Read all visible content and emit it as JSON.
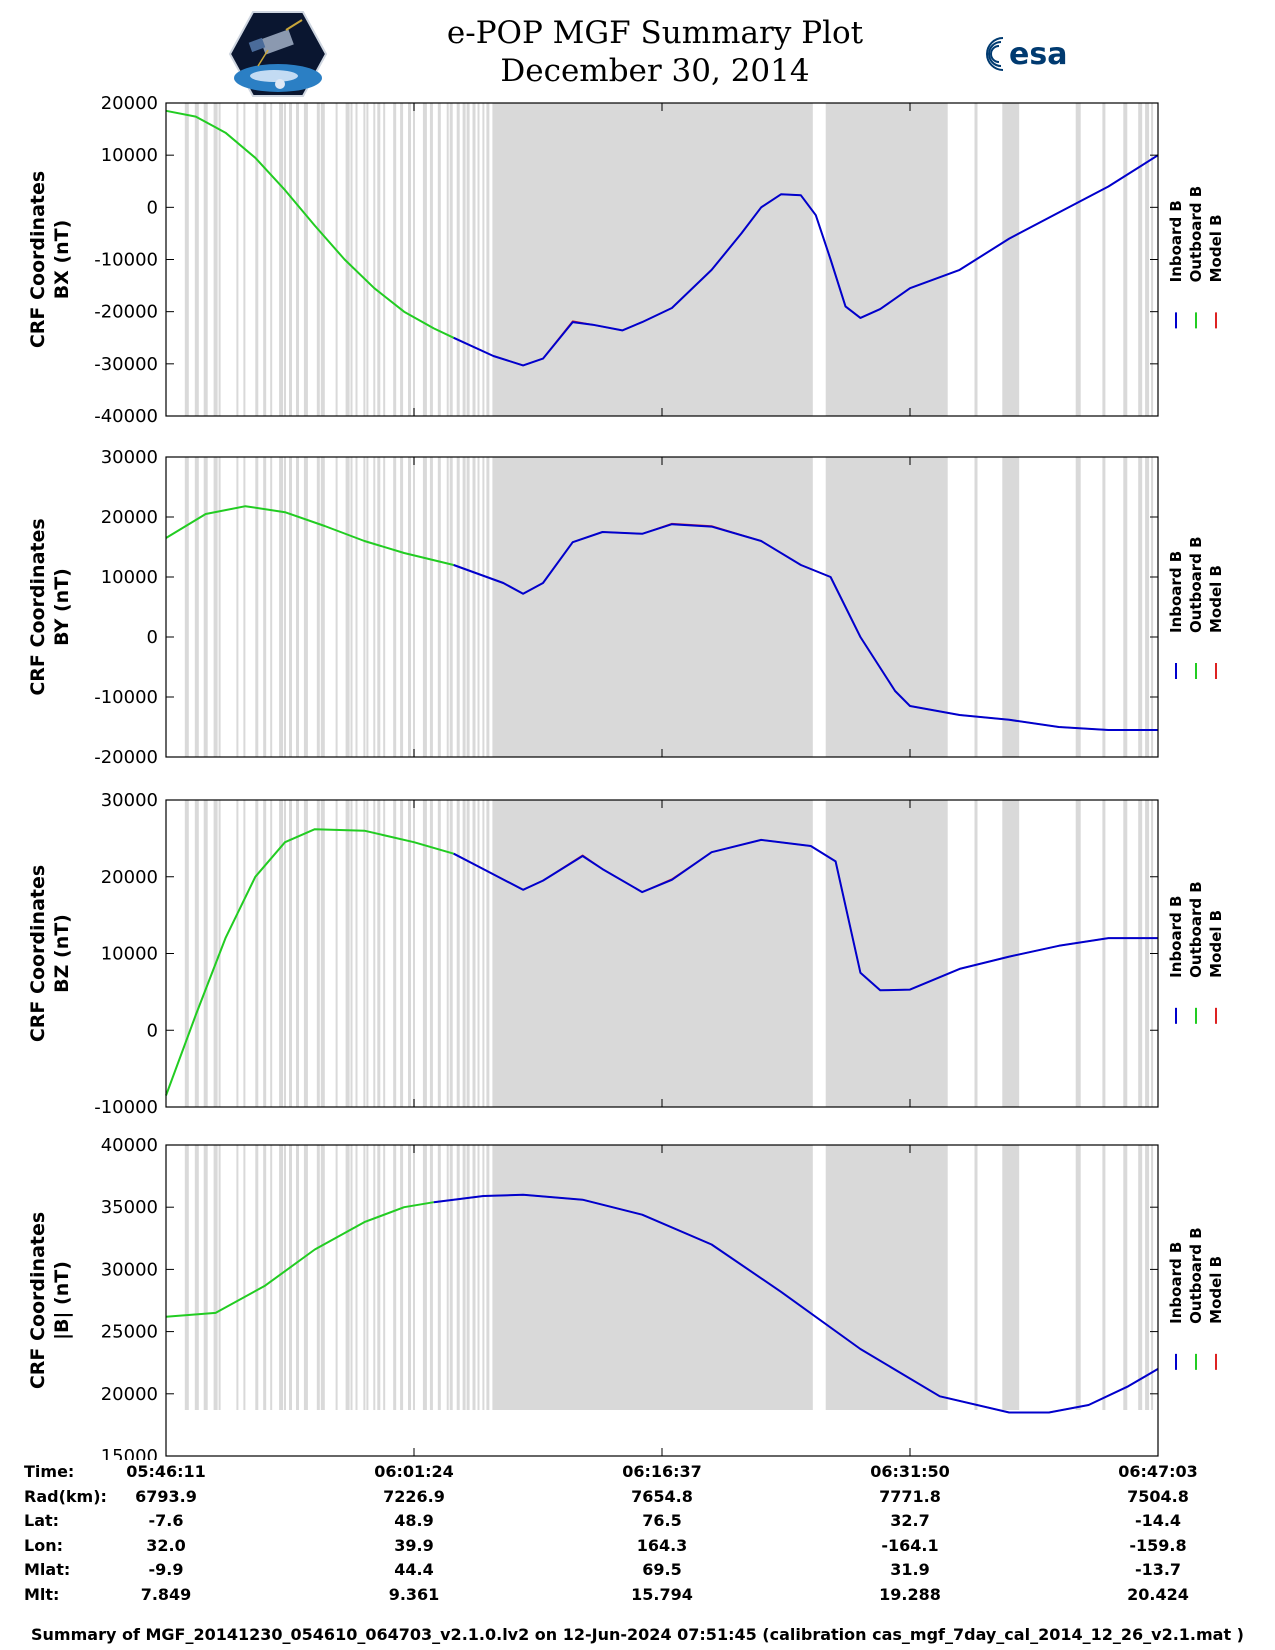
{
  "title": {
    "line1": "e-POP MGF Summary Plot",
    "line2": "December 30, 2014"
  },
  "logos": {
    "left_icon": "cassiope-satellite-logo",
    "right_icon": "esa-logo",
    "right_text": "esa"
  },
  "legend": {
    "labels": [
      "Inboard B",
      "Outboard B",
      "Model B"
    ],
    "colors": [
      "#0000cc",
      "#22cc22",
      "#dd2222"
    ]
  },
  "colors": {
    "gap_shade": "#d9d9d9",
    "inboard": "#0000cc",
    "outboard": "#22cc22",
    "model": "#dd2222"
  },
  "chart_data": [
    {
      "type": "line",
      "ylabel_top": "CRF Coordinates",
      "ylabel_bottom": "BX (nT)",
      "ylim": [
        -40000,
        20000
      ],
      "yticks": [
        20000,
        10000,
        0,
        -10000,
        -20000,
        -30000,
        -40000
      ],
      "series": [
        {
          "name": "Outboard B",
          "x": [
            0,
            0.03,
            0.06,
            0.09,
            0.12,
            0.15,
            0.18,
            0.21,
            0.24,
            0.27,
            0.29
          ],
          "values": [
            18500,
            17400,
            14300,
            9500,
            3300,
            -3500,
            -10000,
            -15500,
            -20000,
            -23200,
            -25000
          ]
        },
        {
          "name": "Inboard B",
          "x": [
            0.29,
            0.33,
            0.36,
            0.38,
            0.41,
            0.43,
            0.46,
            0.48,
            0.51,
            0.55,
            0.58,
            0.6,
            0.62,
            0.64,
            0.655,
            0.67,
            0.685,
            0.7,
            0.72,
            0.75,
            0.8,
            0.85,
            0.9,
            0.95,
            1.0
          ],
          "values": [
            -25000,
            -28500,
            -30300,
            -29000,
            -22000,
            -22500,
            -23600,
            -22000,
            -19300,
            -12000,
            -5000,
            0,
            2500,
            2300,
            -1500,
            -10000,
            -19000,
            -21200,
            -19500,
            -15500,
            -12000,
            -6000,
            -1000,
            4000,
            10000
          ]
        },
        {
          "name": "Model B",
          "x": [
            0.29,
            0.33,
            0.36,
            0.38,
            0.41,
            0.43,
            0.46,
            0.48,
            0.51,
            0.55,
            0.58,
            0.6,
            0.62,
            0.64,
            0.655,
            0.67,
            0.685,
            0.7,
            0.72,
            0.75,
            0.8,
            0.85,
            0.9,
            0.95,
            1.0
          ],
          "values": [
            -25000,
            -28500,
            -30300,
            -29000,
            -21800,
            -22500,
            -23600,
            -22000,
            -19300,
            -12000,
            -5000,
            0,
            2500,
            2300,
            -1500,
            -10000,
            -19000,
            -21200,
            -19500,
            -15500,
            -12000,
            -6000,
            -1000,
            4000,
            10000
          ]
        }
      ]
    },
    {
      "type": "line",
      "ylabel_top": "CRF Coordinates",
      "ylabel_bottom": "BY (nT)",
      "ylim": [
        -20000,
        30000
      ],
      "yticks": [
        30000,
        20000,
        10000,
        0,
        -10000,
        -20000
      ],
      "series": [
        {
          "name": "Outboard B",
          "x": [
            0,
            0.04,
            0.08,
            0.12,
            0.16,
            0.2,
            0.24,
            0.29
          ],
          "values": [
            16500,
            20500,
            21800,
            20800,
            18500,
            16000,
            14000,
            12000
          ]
        },
        {
          "name": "Inboard B",
          "x": [
            0.29,
            0.34,
            0.36,
            0.38,
            0.41,
            0.44,
            0.48,
            0.51,
            0.55,
            0.6,
            0.64,
            0.67,
            0.7,
            0.735,
            0.75,
            0.8,
            0.85,
            0.9,
            0.95,
            1.0
          ],
          "values": [
            12000,
            9000,
            7200,
            9000,
            15800,
            17500,
            17200,
            18800,
            18400,
            16000,
            12000,
            10000,
            0,
            -9000,
            -11500,
            -13000,
            -13800,
            -15000,
            -15500,
            -15500
          ]
        },
        {
          "name": "Model B",
          "x": [
            0.29,
            0.34,
            0.36,
            0.38,
            0.41,
            0.44,
            0.48,
            0.51,
            0.55,
            0.6,
            0.64,
            0.67,
            0.7,
            0.735,
            0.75,
            0.8,
            0.85,
            0.9,
            0.95,
            1.0
          ],
          "values": [
            12000,
            9000,
            7200,
            9000,
            15800,
            17500,
            17200,
            18900,
            18500,
            16000,
            12000,
            10000,
            0,
            -9000,
            -11500,
            -13000,
            -13800,
            -15000,
            -15500,
            -15500
          ]
        }
      ]
    },
    {
      "type": "line",
      "ylabel_top": "CRF Coordinates",
      "ylabel_bottom": "BZ (nT)",
      "ylim": [
        -10000,
        30000
      ],
      "yticks": [
        30000,
        20000,
        10000,
        0,
        -10000
      ],
      "series": [
        {
          "name": "Outboard B",
          "x": [
            0,
            0.03,
            0.06,
            0.09,
            0.12,
            0.15,
            0.2,
            0.25,
            0.29
          ],
          "values": [
            -8500,
            2000,
            12000,
            20000,
            24500,
            26200,
            26000,
            24500,
            23000
          ]
        },
        {
          "name": "Inboard B",
          "x": [
            0.29,
            0.32,
            0.36,
            0.38,
            0.42,
            0.44,
            0.48,
            0.51,
            0.55,
            0.6,
            0.65,
            0.675,
            0.7,
            0.72,
            0.75,
            0.8,
            0.85,
            0.9,
            0.95,
            1.0
          ],
          "values": [
            23000,
            21000,
            18300,
            19500,
            22700,
            21000,
            18000,
            19600,
            23200,
            24800,
            24000,
            22000,
            7500,
            5200,
            5300,
            8000,
            9600,
            11000,
            12000,
            12000
          ]
        },
        {
          "name": "Model B",
          "x": [
            0.29,
            0.32,
            0.36,
            0.38,
            0.42,
            0.44,
            0.48,
            0.51,
            0.55,
            0.6,
            0.65,
            0.675,
            0.7,
            0.72,
            0.75,
            0.8,
            0.85,
            0.9,
            0.95,
            1.0
          ],
          "values": [
            23000,
            21000,
            18300,
            19500,
            22800,
            21000,
            18000,
            19700,
            23200,
            24800,
            24000,
            22000,
            7500,
            5200,
            5300,
            8000,
            9600,
            11000,
            12000,
            12000
          ]
        }
      ]
    },
    {
      "type": "line",
      "ylabel_top": "CRF Coordinates",
      "ylabel_bottom": "|B| (nT)",
      "ylim": [
        15000,
        40000
      ],
      "yticks": [
        40000,
        35000,
        30000,
        25000,
        20000,
        15000
      ],
      "series": [
        {
          "name": "Outboard B",
          "x": [
            0,
            0.05,
            0.1,
            0.15,
            0.2,
            0.24,
            0.27
          ],
          "values": [
            26200,
            26500,
            28700,
            31600,
            33800,
            35000,
            35400
          ]
        },
        {
          "name": "Inboard B",
          "x": [
            0.27,
            0.32,
            0.36,
            0.42,
            0.48,
            0.55,
            0.62,
            0.7,
            0.78,
            0.85,
            0.89,
            0.93,
            0.97,
            1.0
          ],
          "values": [
            35400,
            35900,
            36000,
            35600,
            34400,
            32000,
            28200,
            23600,
            19800,
            18500,
            18500,
            19100,
            20600,
            22000
          ]
        },
        {
          "name": "Model B",
          "x": [
            0.27,
            0.32,
            0.36,
            0.42,
            0.48,
            0.55,
            0.62,
            0.7,
            0.78,
            0.85,
            0.89,
            0.93,
            0.97,
            1.0
          ],
          "values": [
            35400,
            35900,
            36000,
            35600,
            34400,
            32000,
            28200,
            23600,
            19800,
            18500,
            18500,
            19100,
            20600,
            22000
          ]
        }
      ]
    }
  ],
  "gaps": [
    [
      0.019,
      0.023
    ],
    [
      0.029,
      0.033
    ],
    [
      0.038,
      0.042
    ],
    [
      0.048,
      0.052
    ],
    [
      0.053,
      0.055
    ],
    [
      0.071,
      0.073
    ],
    [
      0.078,
      0.08
    ],
    [
      0.09,
      0.093
    ],
    [
      0.098,
      0.101
    ],
    [
      0.105,
      0.107
    ],
    [
      0.114,
      0.118
    ],
    [
      0.119,
      0.121
    ],
    [
      0.124,
      0.127
    ],
    [
      0.131,
      0.134
    ],
    [
      0.139,
      0.143
    ],
    [
      0.152,
      0.155
    ],
    [
      0.156,
      0.16
    ],
    [
      0.171,
      0.173
    ],
    [
      0.181,
      0.185
    ],
    [
      0.186,
      0.188
    ],
    [
      0.191,
      0.193
    ],
    [
      0.199,
      0.201
    ],
    [
      0.202,
      0.204
    ],
    [
      0.209,
      0.211
    ],
    [
      0.213,
      0.216
    ],
    [
      0.219,
      0.221
    ],
    [
      0.229,
      0.232
    ],
    [
      0.236,
      0.239
    ],
    [
      0.244,
      0.247
    ],
    [
      0.249,
      0.251
    ],
    [
      0.259,
      0.263
    ],
    [
      0.266,
      0.269
    ],
    [
      0.274,
      0.277
    ],
    [
      0.283,
      0.285
    ],
    [
      0.286,
      0.289
    ],
    [
      0.293,
      0.296
    ],
    [
      0.299,
      0.302
    ],
    [
      0.303,
      0.306
    ],
    [
      0.309,
      0.312
    ],
    [
      0.314,
      0.316
    ],
    [
      0.319,
      0.321
    ],
    [
      0.323,
      0.326
    ],
    [
      0.329,
      0.652
    ],
    [
      0.665,
      0.788
    ],
    [
      0.815,
      0.818
    ],
    [
      0.843,
      0.86
    ],
    [
      0.917,
      0.922
    ],
    [
      0.944,
      0.947
    ],
    [
      0.965,
      0.969
    ],
    [
      0.98,
      0.984
    ],
    [
      0.987,
      0.991
    ],
    [
      0.993,
      0.995
    ]
  ],
  "x_axis": {
    "ticks": [
      "05:46:11",
      "06:01:24",
      "06:16:37",
      "06:31:50",
      "06:47:03"
    ]
  },
  "info_rows": [
    {
      "label": "Time:",
      "values": [
        "05:46:11",
        "06:01:24",
        "06:16:37",
        "06:31:50",
        "06:47:03"
      ]
    },
    {
      "label": "Rad(km):",
      "values": [
        "6793.9",
        "7226.9",
        "7654.8",
        "7771.8",
        "7504.8"
      ]
    },
    {
      "label": "Lat:",
      "values": [
        "-7.6",
        "48.9",
        "76.5",
        "32.7",
        "-14.4"
      ]
    },
    {
      "label": "Lon:",
      "values": [
        "32.0",
        "39.9",
        "164.3",
        "-164.1",
        "-159.8"
      ]
    },
    {
      "label": "Mlat:",
      "values": [
        "-9.9",
        "44.4",
        "69.5",
        "31.9",
        "-13.7"
      ]
    },
    {
      "label": "Mlt:",
      "values": [
        "7.849",
        "9.361",
        "15.794",
        "19.288",
        "20.424"
      ]
    }
  ],
  "footer": "Summary of MGF_20141230_054610_064703_v2.1.0.lv2 on 12-Jun-2024 07:51:45 (calibration cas_mgf_7day_cal_2014_12_26_v2.1.mat )"
}
